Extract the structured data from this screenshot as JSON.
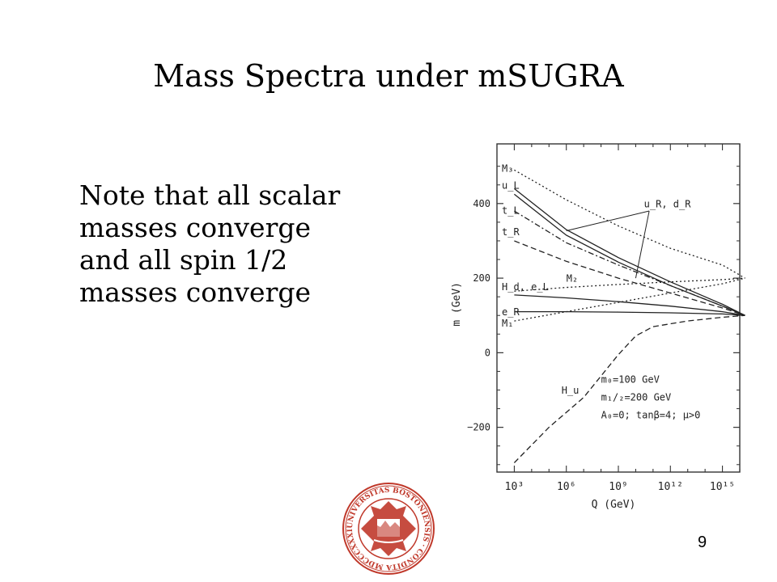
{
  "slide": {
    "title": "Mass Spectra under mSUGRA",
    "note_lines": [
      "Note that all scalar",
      "masses converge",
      "and all spin 1/2",
      "masses converge"
    ],
    "page_number": "9"
  },
  "seal": {
    "text": "UNIVERSITAS BOSTONIENSIS · CONDITA MDCCCXXXIX",
    "color": "#c0392b"
  },
  "chart_data": {
    "type": "line",
    "xlabel": "Q (GeV)",
    "ylabel": "m (GeV)",
    "xscale": "log",
    "xlim": [
      100,
      10000000000000000
    ],
    "ylim": [
      -320,
      560
    ],
    "x_ticks": [
      {
        "value": 1000,
        "label": "10³"
      },
      {
        "value": 1000000,
        "label": "10⁶"
      },
      {
        "value": 1000000000,
        "label": "10⁹"
      },
      {
        "value": 1000000000000,
        "label": "10¹²"
      },
      {
        "value": 1000000000000000,
        "label": "10¹⁵"
      }
    ],
    "y_ticks": [
      {
        "value": 400,
        "label": "400"
      },
      {
        "value": 200,
        "label": "200"
      },
      {
        "value": 0,
        "label": "0"
      },
      {
        "value": -200,
        "label": "−200"
      }
    ],
    "annotation_lines": [
      "m₀=100 GeV",
      "m₁/₂=200 GeV",
      "A₀=0;  tanβ=4;  μ>0"
    ],
    "series": [
      {
        "name": "M₃",
        "style": "dotted",
        "x": [
          1000,
          1000000,
          1000000000,
          1000000000000,
          1000000000000000,
          20000000000000000
        ],
        "y": [
          490,
          410,
          340,
          280,
          235,
          200
        ]
      },
      {
        "name": "u_L",
        "style": "solid",
        "x": [
          1000,
          1000000,
          1000000000,
          1000000000000,
          1000000000000000,
          20000000000000000
        ],
        "y": [
          440,
          330,
          255,
          190,
          130,
          100
        ]
      },
      {
        "name": "",
        "style": "solid",
        "x": [
          1000,
          1000000,
          1000000000,
          1000000000000,
          1000000000000000,
          20000000000000000
        ],
        "y": [
          425,
          315,
          243,
          180,
          125,
          100
        ]
      },
      {
        "name": "t_L",
        "style": "dashdot",
        "x": [
          1000,
          1000000,
          1000000000,
          1000000000000,
          1000000000000000,
          20000000000000000
        ],
        "y": [
          380,
          295,
          235,
          180,
          125,
          100
        ]
      },
      {
        "name": "t_R",
        "style": "dashed",
        "x": [
          1000,
          1000000,
          1000000000,
          1000000000000,
          1000000000000000,
          20000000000000000
        ],
        "y": [
          300,
          245,
          200,
          160,
          120,
          100
        ]
      },
      {
        "name": "M₂",
        "style": "dotted",
        "x": [
          1000,
          1000000,
          1000000000,
          1000000000000,
          1000000000000000,
          20000000000000000
        ],
        "y": [
          165,
          175,
          183,
          190,
          196,
          200
        ]
      },
      {
        "name": "H_d, e_L",
        "style": "solid",
        "x": [
          1000,
          1000000,
          1000000000,
          1000000000000,
          1000000000000000,
          20000000000000000
        ],
        "y": [
          155,
          147,
          137,
          125,
          110,
          100
        ]
      },
      {
        "name": "e_R",
        "style": "solid",
        "x": [
          1000,
          1000000,
          1000000000,
          1000000000000,
          1000000000000000,
          20000000000000000
        ],
        "y": [
          110,
          110,
          109,
          107,
          104,
          100
        ]
      },
      {
        "name": "M₁",
        "style": "dotted",
        "x": [
          1000,
          1000000,
          1000000000,
          1000000000000,
          1000000000000000,
          20000000000000000
        ],
        "y": [
          85,
          110,
          135,
          160,
          185,
          200
        ]
      },
      {
        "name": "H_u",
        "style": "dashed",
        "x": [
          1000,
          100000,
          10000000,
          1000000000,
          10000000000,
          100000000000,
          10000000000000,
          1000000000000000,
          20000000000000000
        ],
        "y": [
          -295,
          -200,
          -120,
          -5,
          45,
          70,
          85,
          95,
          100
        ]
      }
    ],
    "callout": {
      "label": "u_R, d_R",
      "points_to": [
        {
          "x": 1000000,
          "y": 327
        },
        {
          "x": 10000000000,
          "y": 200
        }
      ]
    }
  }
}
